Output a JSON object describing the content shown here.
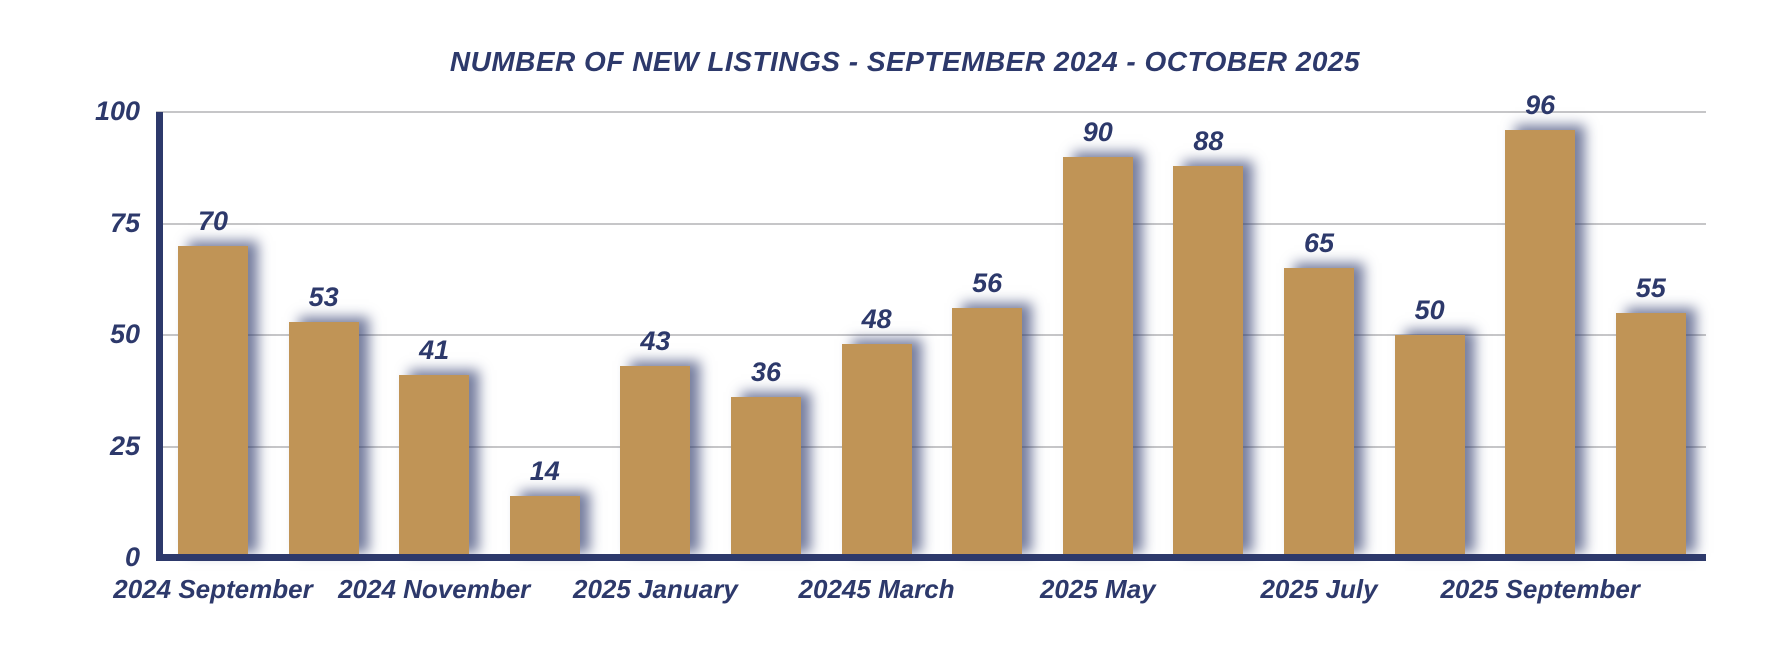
{
  "chart_data": {
    "type": "bar",
    "title": "NUMBER OF NEW LISTINGS - SEPTEMBER 2024 - OCTOBER 2025",
    "values": [
      70,
      53,
      41,
      14,
      43,
      36,
      48,
      56,
      90,
      88,
      65,
      50,
      96,
      55
    ],
    "x_tick_labels": [
      "2024 September",
      "2024 November",
      "2025 January",
      "20245 March",
      "2025 May",
      "2025 July",
      "2025 September"
    ],
    "x_tick_positions": [
      0,
      2,
      4,
      6,
      8,
      10,
      12
    ],
    "y_ticks": [
      0,
      25,
      50,
      75,
      100
    ],
    "ylim": [
      0,
      100
    ],
    "xlabel": "",
    "ylabel": "",
    "grid": true,
    "legend": false,
    "colors": {
      "bar": "#c09456",
      "text": "#2d396b",
      "axis": "#2d396b",
      "gridline": "#c6c6c8",
      "shadow": "rgba(45,57,107,0.65)",
      "background": "#ffffff"
    }
  }
}
